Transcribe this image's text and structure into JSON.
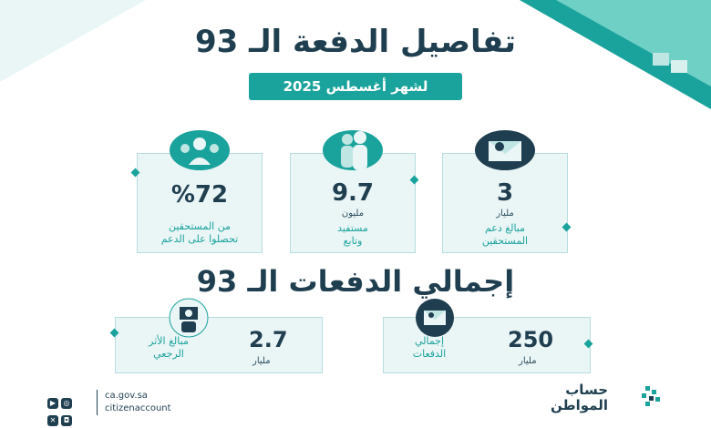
{
  "header": {
    "title": "تفاصيل الدفعة الـ 93",
    "subtitle": "لشهر أغسطس 2025"
  },
  "stats": [
    {
      "value": "%72",
      "unit": "",
      "label_line1": "من المستحقين",
      "label_line2": "تحصلوا على الدعم",
      "icon": "group-icon"
    },
    {
      "value": "9.7",
      "unit": "مليون",
      "label_line1": "مستفيد",
      "label_line2": "وتابع",
      "icon": "people-icon"
    },
    {
      "value": "3",
      "unit": "مليار",
      "label_line1": "مبالغ دعم",
      "label_line2": "المستحقين",
      "icon": "money-envelope-icon"
    }
  ],
  "totals": {
    "title": "إجمالي الدفعات الـ 93",
    "items": [
      {
        "value": "2.7",
        "unit": "مليار",
        "label_line1": "مبالغ الأثر",
        "label_line2": "الرجعي",
        "icon": "hand-money-icon"
      },
      {
        "value": "250",
        "unit": "مليار",
        "label_line1": "إجمالي",
        "label_line2": "الدفعات",
        "icon": "money-envelope-icon"
      }
    ]
  },
  "footer": {
    "website": "ca.gov.sa",
    "handle": "citizenaccount",
    "logo_line1": "حساب",
    "logo_line2": "المواطن",
    "social_icons": [
      "youtube-icon",
      "web-icon",
      "x-icon",
      "instagram-icon"
    ]
  },
  "colors": {
    "teal": "#1aa39c",
    "navy": "#1f3f50",
    "card_bg": "#eaf5f6"
  }
}
